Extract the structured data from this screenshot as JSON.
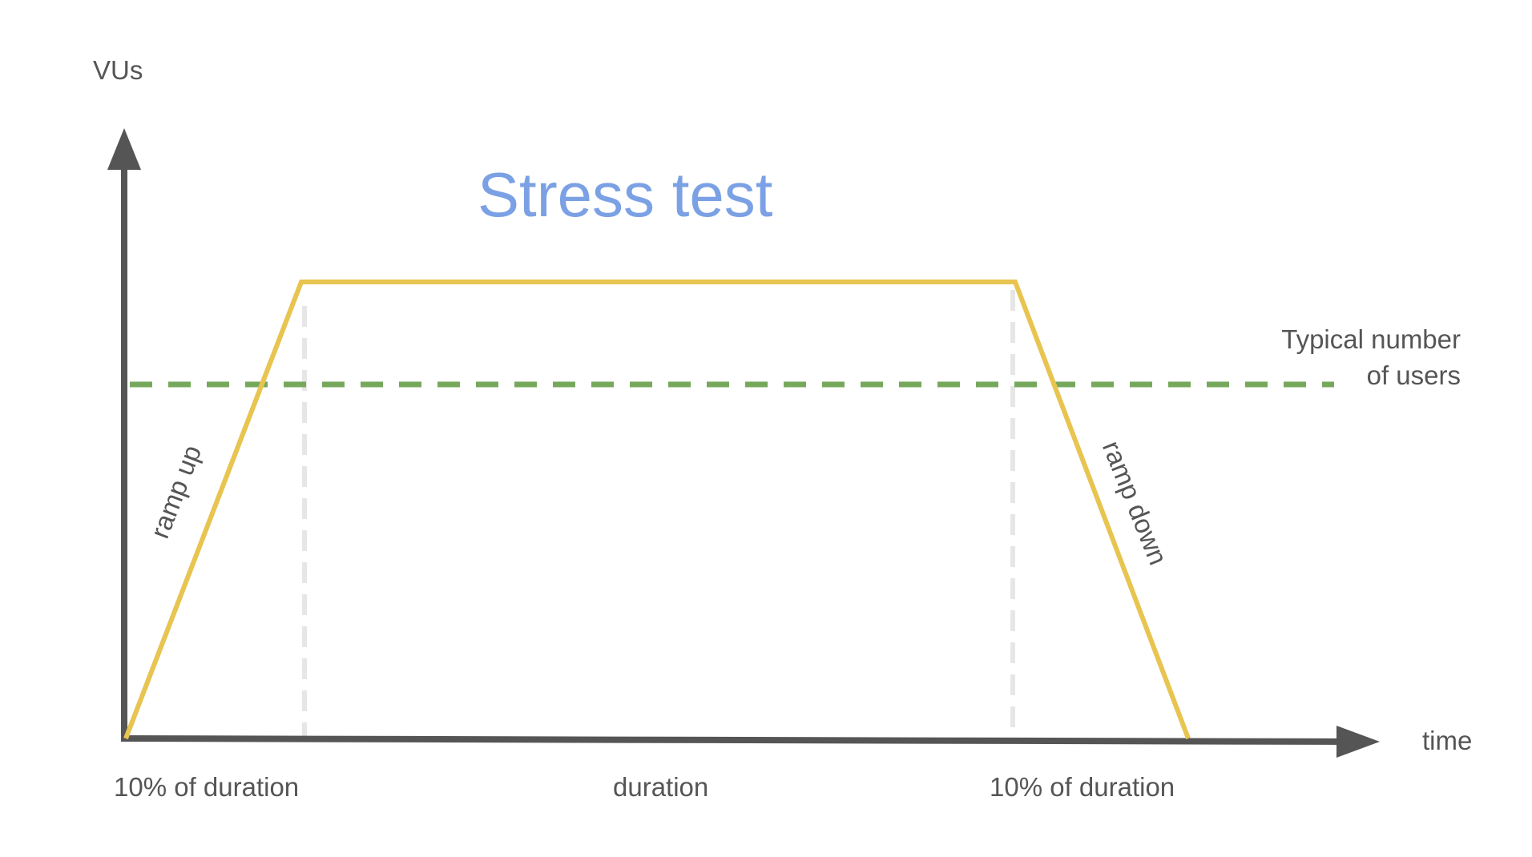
{
  "diagram": {
    "title": "Stress test",
    "y_axis_label": "VUs",
    "x_axis_label": "time",
    "reference_line": {
      "label_line1": "Typical number",
      "label_line2": "of users"
    },
    "phases": {
      "ramp_up": "ramp up",
      "ramp_down": "ramp down"
    },
    "durations": {
      "start": "10% of duration",
      "middle": "duration",
      "end": "10% of duration"
    },
    "colors": {
      "axis": "#555555",
      "load_profile": "#E8C450",
      "typical_users": "#76A85C",
      "guide": "#E6E6E6",
      "title": "#7BA1E4",
      "text": "#555555"
    }
  }
}
